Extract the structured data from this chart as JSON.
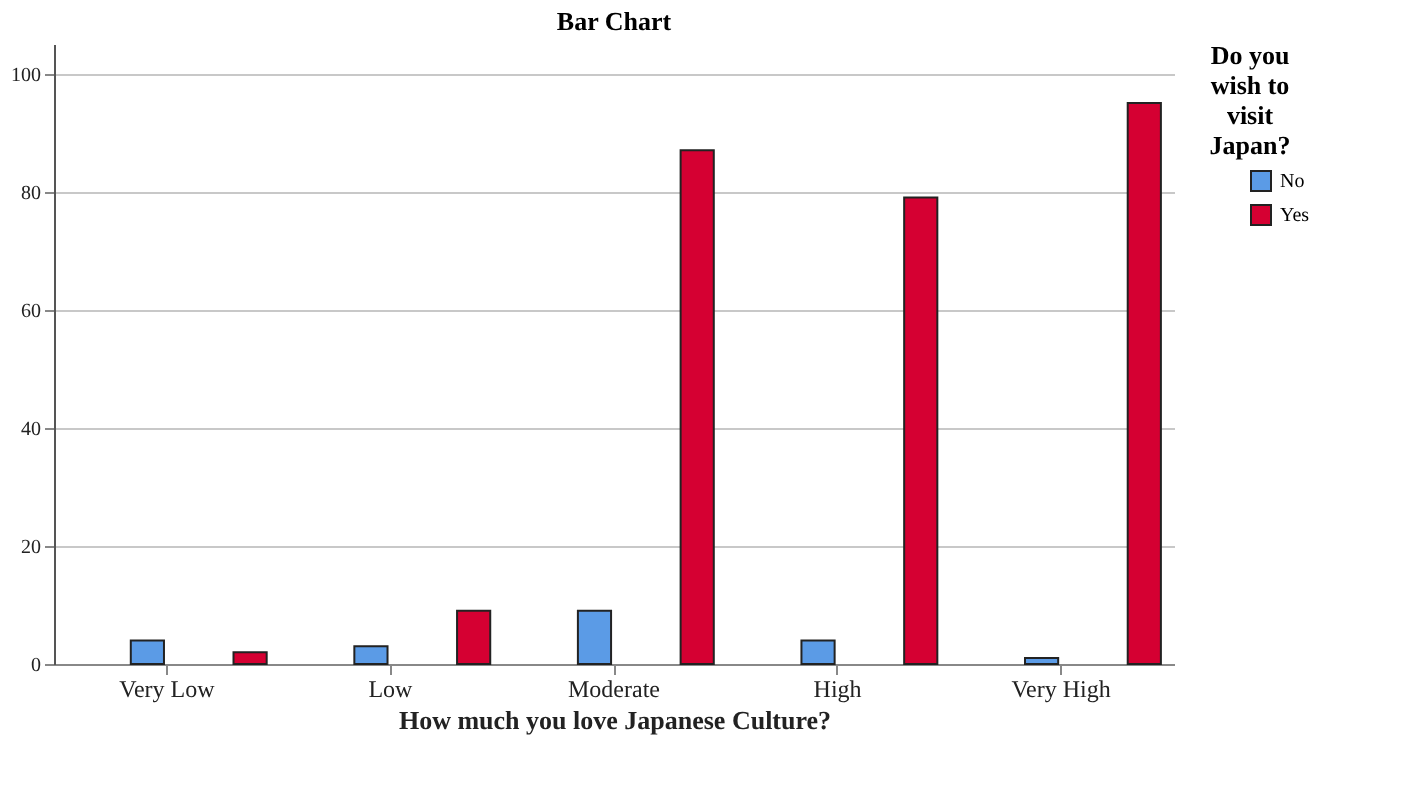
{
  "chart_data": {
    "type": "bar",
    "title": "Bar Chart",
    "xlabel": "How much you love Japanese Culture?",
    "legend_title": "Do you wish to visit Japan?",
    "categories": [
      "Very Low",
      "Low",
      "Moderate",
      "High",
      "Very High"
    ],
    "series": [
      {
        "name": "No",
        "color": "#5b9be6",
        "values": [
          4,
          3,
          9,
          4,
          1
        ]
      },
      {
        "name": "Yes",
        "color": "#d50032",
        "values": [
          2,
          9,
          87,
          79,
          95
        ]
      }
    ],
    "ylim": [
      0,
      105
    ],
    "yticks": [
      0,
      20,
      40,
      60,
      80,
      100
    ],
    "grid": "y",
    "legend": "top right"
  }
}
